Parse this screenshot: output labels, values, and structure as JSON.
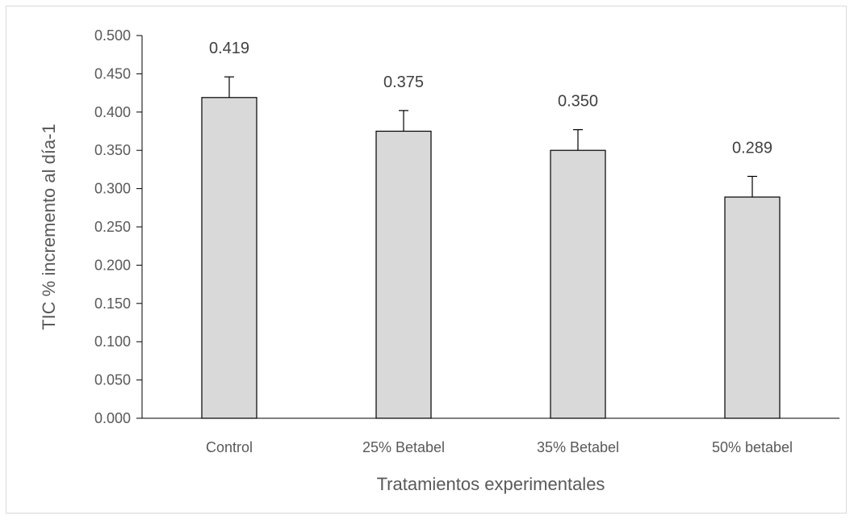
{
  "chart_data": {
    "type": "bar",
    "title": "",
    "xlabel": "Tratamientos experimentales",
    "ylabel": "TIC  % incremento al día-1",
    "categories": [
      "Control",
      "25% Betabel",
      "35% Betabel",
      "50% betabel"
    ],
    "values": [
      0.419,
      0.375,
      0.35,
      0.289
    ],
    "data_labels": [
      "0.419",
      "0.375",
      "0.350",
      "0.289"
    ],
    "error_plus": [
      0.027,
      0.027,
      0.027,
      0.027
    ],
    "ylim": [
      0,
      0.5
    ],
    "yticks": [
      0.0,
      0.05,
      0.1,
      0.15,
      0.2,
      0.25,
      0.3,
      0.35,
      0.4,
      0.45,
      0.5
    ],
    "ytick_labels": [
      "0.000",
      "0.050",
      "0.100",
      "0.150",
      "0.200",
      "0.250",
      "0.300",
      "0.350",
      "0.400",
      "0.450",
      "0.500"
    ],
    "grid": false,
    "legend": "none",
    "colors": {
      "bar_fill": "#d9d9d9",
      "bar_stroke": "#000000",
      "axis": "#000000",
      "text": "#595959"
    }
  }
}
